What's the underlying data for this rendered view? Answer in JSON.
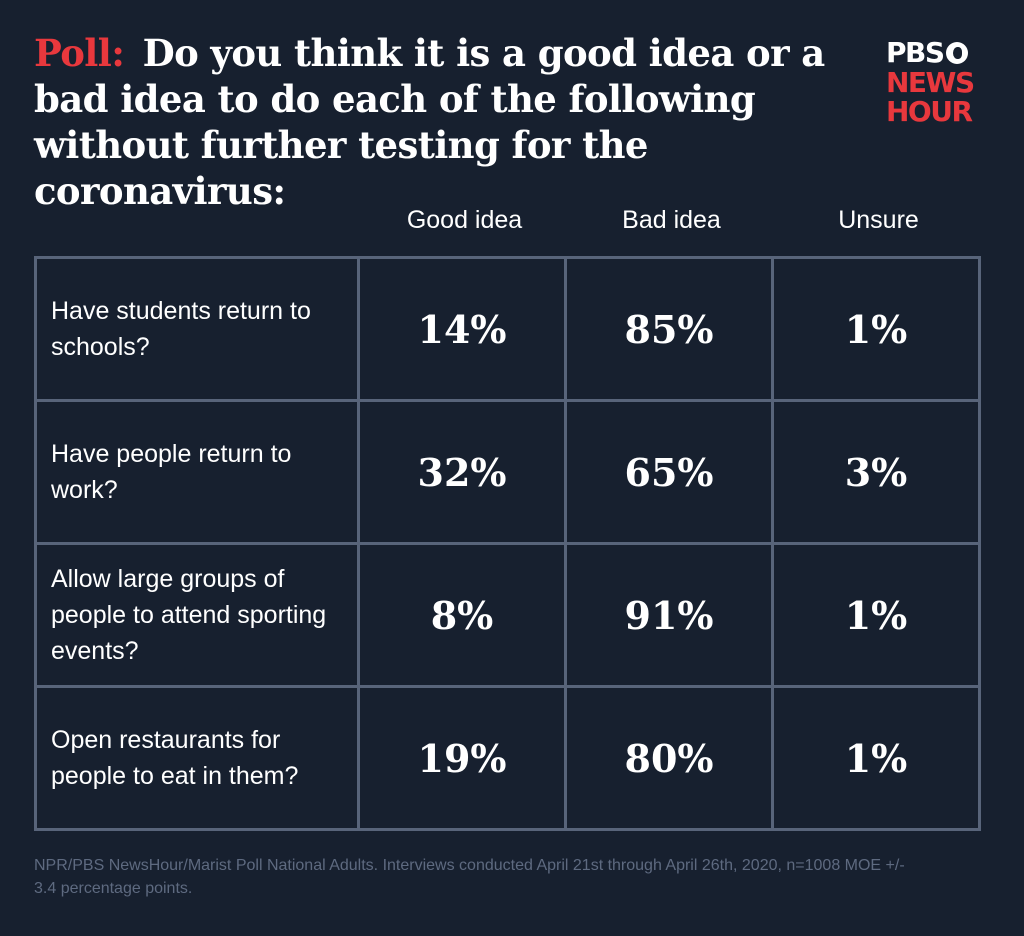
{
  "title": {
    "prefix": "Poll:",
    "text": "Do you think it is a good idea or a bad idea to do each of the following without further testing for the coronavirus:"
  },
  "logo": {
    "line1": "PBS",
    "line2": "NEWS",
    "line3": "HOUR"
  },
  "colors": {
    "background": "#17202f",
    "accent": "#e8383d",
    "grid": "#58647a",
    "footnote": "#5e6a80"
  },
  "chart_data": {
    "type": "table",
    "columns": [
      "Good idea",
      "Bad idea",
      "Unsure"
    ],
    "rows": [
      {
        "question": "Have students return to schools?",
        "values": [
          "14%",
          "85%",
          "1%"
        ]
      },
      {
        "question": "Have people return to work?",
        "values": [
          "32%",
          "65%",
          "3%"
        ]
      },
      {
        "question": "Allow large groups of people to attend sporting events?",
        "values": [
          "8%",
          "91%",
          "1%"
        ]
      },
      {
        "question": "Open restaurants for people to eat in them?",
        "values": [
          "19%",
          "80%",
          "1%"
        ]
      }
    ]
  },
  "footnote": "NPR/PBS NewsHour/Marist Poll National Adults. Interviews conducted April 21st through April 26th, 2020, n=1008 MOE +/- 3.4 percentage points."
}
